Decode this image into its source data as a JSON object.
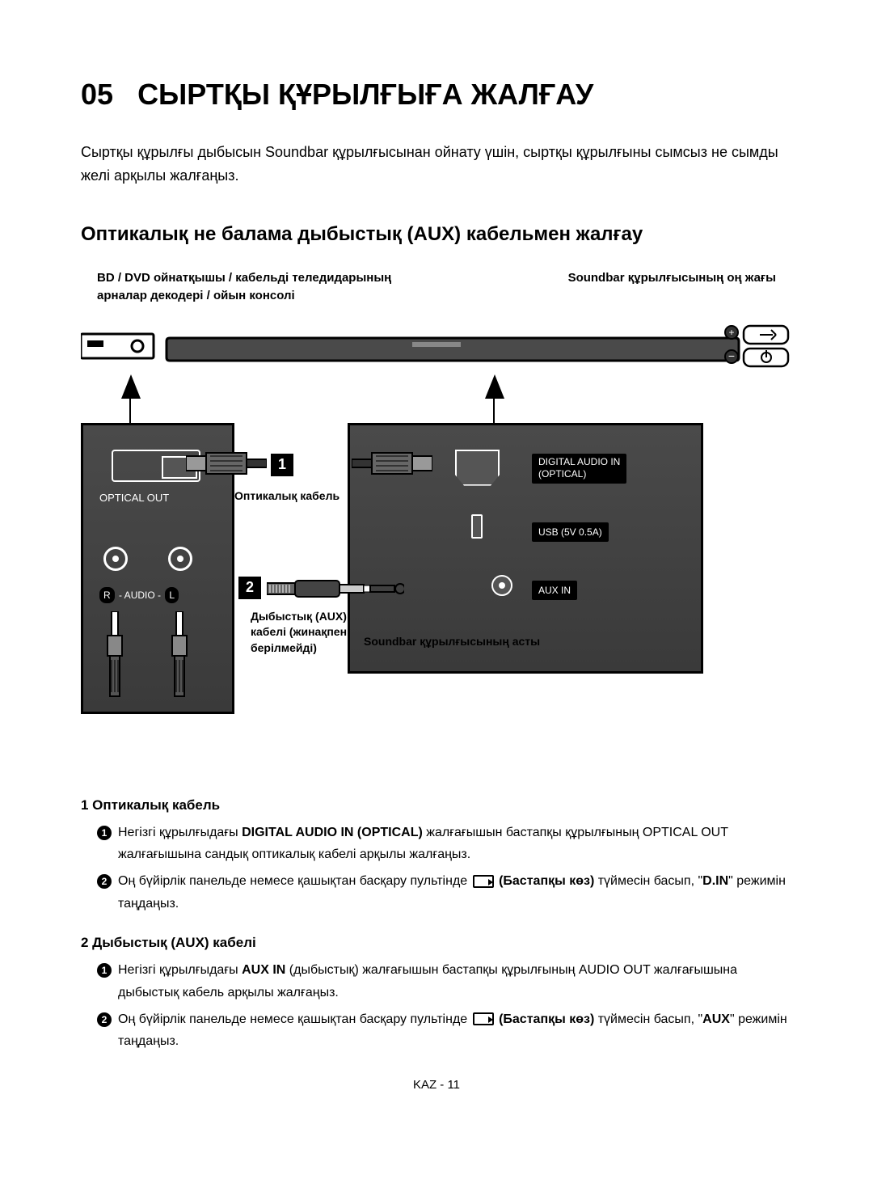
{
  "section": {
    "number": "05",
    "title": "СЫРТҚЫ ҚҰРЫЛҒЫҒА ЖАЛҒАУ",
    "intro": "Сыртқы құрылғы дыбысын Soundbar құрылғысынан ойнату үшін, сыртқы құрылғыны сымсыз не сымды желі арқылы жалғаңыз."
  },
  "subsection_title": "Оптикалық не балама дыбыстық (AUX) кабельмен жалғау",
  "diagram": {
    "bd_label": "BD / DVD ойнатқышы / кабельді теледидарының арналар декодері / ойын консолі",
    "right_label": "Soundbar құрылғысының оң жағы",
    "optical_out": "OPTICAL OUT",
    "optical_cable": "Оптикалық кабель",
    "audio_r": "R",
    "audio_text": "- AUDIO -",
    "audio_l": "L",
    "digital_in": "DIGITAL AUDIO IN\n(OPTICAL)",
    "usb": "USB (5V 0.5A)",
    "aux_in": "AUX IN",
    "aux_cable": "Дыбыстық (AUX) кабелі (жинақпен берілмейді)",
    "soundbar_bottom": "Soundbar құрылғысының асты",
    "num1": "1",
    "num2": "2"
  },
  "instructions": [
    {
      "num": "1",
      "title": "Оптикалық кабель",
      "items": [
        {
          "n": "1",
          "plain_prefix": "Негізгі құрылғыдағы ",
          "bold1": "DIGITAL AUDIO IN (OPTICAL)",
          "plain_mid": " жалғағышын бастапқы құрылғының OPTICAL OUT жалғағышына сандық оптикалық кабелі арқылы жалғаңыз."
        },
        {
          "n": "2",
          "plain_prefix": "Оң бүйірлік панельде немесе қашықтан басқару пультінде ",
          "has_icon": true,
          "bold1": "(Бастапқы көз)",
          "plain_mid": " түймесін басып, \"",
          "bold2": "D.IN",
          "plain_suffix": "\" режимін таңдаңыз."
        }
      ]
    },
    {
      "num": "2",
      "title": "Дыбыстық (AUX) кабелі",
      "items": [
        {
          "n": "1",
          "plain_prefix": "Негізгі құрылғыдағы ",
          "bold1": "AUX IN",
          "plain_mid": " (дыбыстық) жалғағышын бастапқы құрылғының AUDIO OUT жалғағышына дыбыстық кабель арқылы жалғаңыз."
        },
        {
          "n": "2",
          "plain_prefix": "Оң бүйірлік панельде немесе қашықтан басқару пультінде ",
          "has_icon": true,
          "bold1": "(Бастапқы көз)",
          "plain_mid": " түймесін басып, \"",
          "bold2": "AUX",
          "plain_suffix": "\" режимін таңдаңыз."
        }
      ]
    }
  ],
  "footer": "KAZ - 11",
  "colors": {
    "text": "#000000",
    "bg": "#ffffff",
    "panel": "#3a3a3a",
    "panel_border": "#000000",
    "label_on_dark": "#ffffff"
  }
}
